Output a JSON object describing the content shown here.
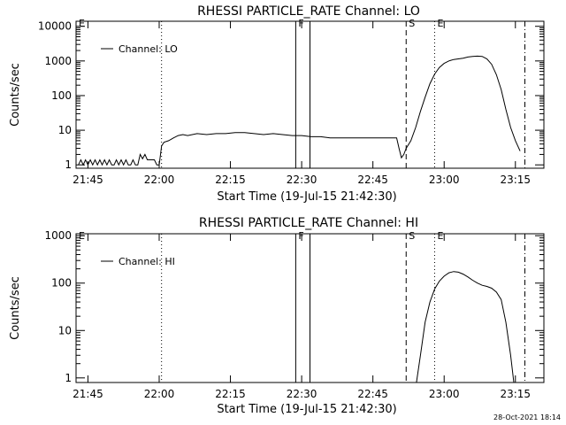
{
  "footer": {
    "timestamp": "28-Oct-2021 18:14"
  },
  "chart_data": [
    {
      "type": "line",
      "title": "RHESSI PARTICLE_RATE Channel: LO",
      "xlabel": "Start Time (19-Jul-15 21:42:30)",
      "ylabel": "Counts/sec",
      "yscale": "log",
      "ylim": [
        0.8,
        14000
      ],
      "xlim": [
        "21:42:30",
        "23:21:00"
      ],
      "xticks": [
        "21:45",
        "22:00",
        "22:15",
        "22:30",
        "22:45",
        "23:00",
        "23:15"
      ],
      "yticks": [
        "1",
        "10",
        "100",
        "1000",
        "10000"
      ],
      "legend": {
        "position": "top-left",
        "entries": [
          "Channel: LO"
        ]
      },
      "markers": [
        {
          "label": "F",
          "time": "22:28:45",
          "style": "solid"
        },
        {
          "label": "",
          "time": "22:31:45",
          "style": "solid"
        },
        {
          "label": "S",
          "time": "22:52:00",
          "style": "dashed"
        },
        {
          "label": "E",
          "time": "22:58:00",
          "style": "dotted"
        },
        {
          "label": "",
          "time": "22:00:30",
          "style": "dotted"
        },
        {
          "label": "",
          "time": "23:17:00",
          "style": "dashdot"
        },
        {
          "label": "E",
          "time": "21:42:30",
          "style": "none"
        }
      ],
      "series": [
        {
          "name": "Channel: LO",
          "x": [
            "21:43:00",
            "21:43:30",
            "21:44:00",
            "21:44:30",
            "21:45:00",
            "21:45:30",
            "21:46:00",
            "21:46:30",
            "21:47:00",
            "21:47:30",
            "21:48:00",
            "21:48:30",
            "21:49:00",
            "21:49:30",
            "21:50:00",
            "21:50:30",
            "21:51:00",
            "21:51:30",
            "21:52:00",
            "21:52:30",
            "21:53:00",
            "21:53:30",
            "21:54:00",
            "21:54:30",
            "21:55:00",
            "21:55:30",
            "21:56:00",
            "21:56:30",
            "21:57:00",
            "21:57:30",
            "21:58:00",
            "21:58:30",
            "21:59:00",
            "21:59:30",
            "22:00:00",
            "22:00:30",
            "22:01:00",
            "22:02:00",
            "22:03:00",
            "22:04:00",
            "22:05:00",
            "22:06:00",
            "22:08:00",
            "22:10:00",
            "22:12:00",
            "22:14:00",
            "22:16:00",
            "22:18:00",
            "22:20:00",
            "22:22:00",
            "22:24:00",
            "22:26:00",
            "22:28:00",
            "22:30:00",
            "22:32:00",
            "22:34:00",
            "22:36:00",
            "22:38:00",
            "22:40:00",
            "22:42:00",
            "22:44:00",
            "22:46:00",
            "22:48:00",
            "22:50:00",
            "22:50:30",
            "22:51:00",
            "22:51:30",
            "22:52:00",
            "22:53:00",
            "22:54:00",
            "22:55:00",
            "22:56:00",
            "22:57:00",
            "22:58:00",
            "22:59:00",
            "23:00:00",
            "23:01:00",
            "23:02:00",
            "23:03:00",
            "23:04:00",
            "23:05:00",
            "23:06:00",
            "23:07:00",
            "23:08:00",
            "23:09:00",
            "23:10:00",
            "23:11:00",
            "23:12:00",
            "23:13:00",
            "23:14:00",
            "23:15:00",
            "23:16:00"
          ],
          "y": [
            1,
            1.4,
            1,
            1.4,
            1,
            1.4,
            1,
            1.4,
            1,
            1.4,
            1,
            1.4,
            1,
            1.4,
            1,
            1,
            1.4,
            1,
            1.4,
            1,
            1.4,
            1,
            1,
            1.4,
            1,
            1,
            2,
            1.5,
            2,
            1.4,
            1.4,
            1.4,
            1.4,
            1,
            1,
            3.5,
            4.5,
            5,
            6,
            7,
            7.5,
            7,
            8,
            7.5,
            8,
            8,
            8.5,
            8.5,
            8,
            7.5,
            8,
            7.5,
            7,
            7,
            6.5,
            6.5,
            6,
            6,
            6,
            6,
            6,
            6,
            6,
            6,
            3,
            1.6,
            2,
            3,
            5,
            12,
            35,
            90,
            220,
            420,
            650,
            850,
            1000,
            1100,
            1150,
            1200,
            1300,
            1350,
            1380,
            1350,
            1150,
            800,
            400,
            150,
            40,
            12,
            5,
            2.5
          ]
        }
      ]
    },
    {
      "type": "line",
      "title": "RHESSI PARTICLE_RATE Channel: HI",
      "xlabel": "Start Time (19-Jul-15 21:42:30)",
      "ylabel": "Counts/sec",
      "yscale": "log",
      "ylim": [
        0.8,
        1100
      ],
      "xlim": [
        "21:42:30",
        "23:21:00"
      ],
      "xticks": [
        "21:45",
        "22:00",
        "22:15",
        "22:30",
        "22:45",
        "23:00",
        "23:15"
      ],
      "yticks": [
        "1",
        "10",
        "100",
        "1000"
      ],
      "legend": {
        "position": "top-left",
        "entries": [
          "Channel: HI"
        ]
      },
      "markers": [
        {
          "label": "F",
          "time": "22:28:45",
          "style": "solid"
        },
        {
          "label": "",
          "time": "22:31:45",
          "style": "solid"
        },
        {
          "label": "S",
          "time": "22:52:00",
          "style": "dashed"
        },
        {
          "label": "E",
          "time": "22:58:00",
          "style": "dotted"
        },
        {
          "label": "",
          "time": "22:00:30",
          "style": "dotted"
        },
        {
          "label": "",
          "time": "23:17:00",
          "style": "dashdot"
        },
        {
          "label": "E",
          "time": "21:42:30",
          "style": "none"
        }
      ],
      "series": [
        {
          "name": "Channel: HI",
          "x": [
            "22:54:10",
            "22:55:00",
            "22:56:00",
            "22:57:00",
            "22:58:00",
            "22:59:00",
            "23:00:00",
            "23:01:00",
            "23:02:00",
            "23:03:00",
            "23:04:00",
            "23:05:00",
            "23:06:00",
            "23:07:00",
            "23:08:00",
            "23:09:00",
            "23:10:00",
            "23:11:00",
            "23:12:00",
            "23:13:00",
            "23:14:00",
            "23:14:40"
          ],
          "y": [
            0.8,
            3,
            15,
            40,
            75,
            110,
            140,
            165,
            175,
            170,
            155,
            135,
            115,
            100,
            90,
            85,
            78,
            65,
            45,
            15,
            3,
            0.8
          ]
        }
      ]
    }
  ]
}
